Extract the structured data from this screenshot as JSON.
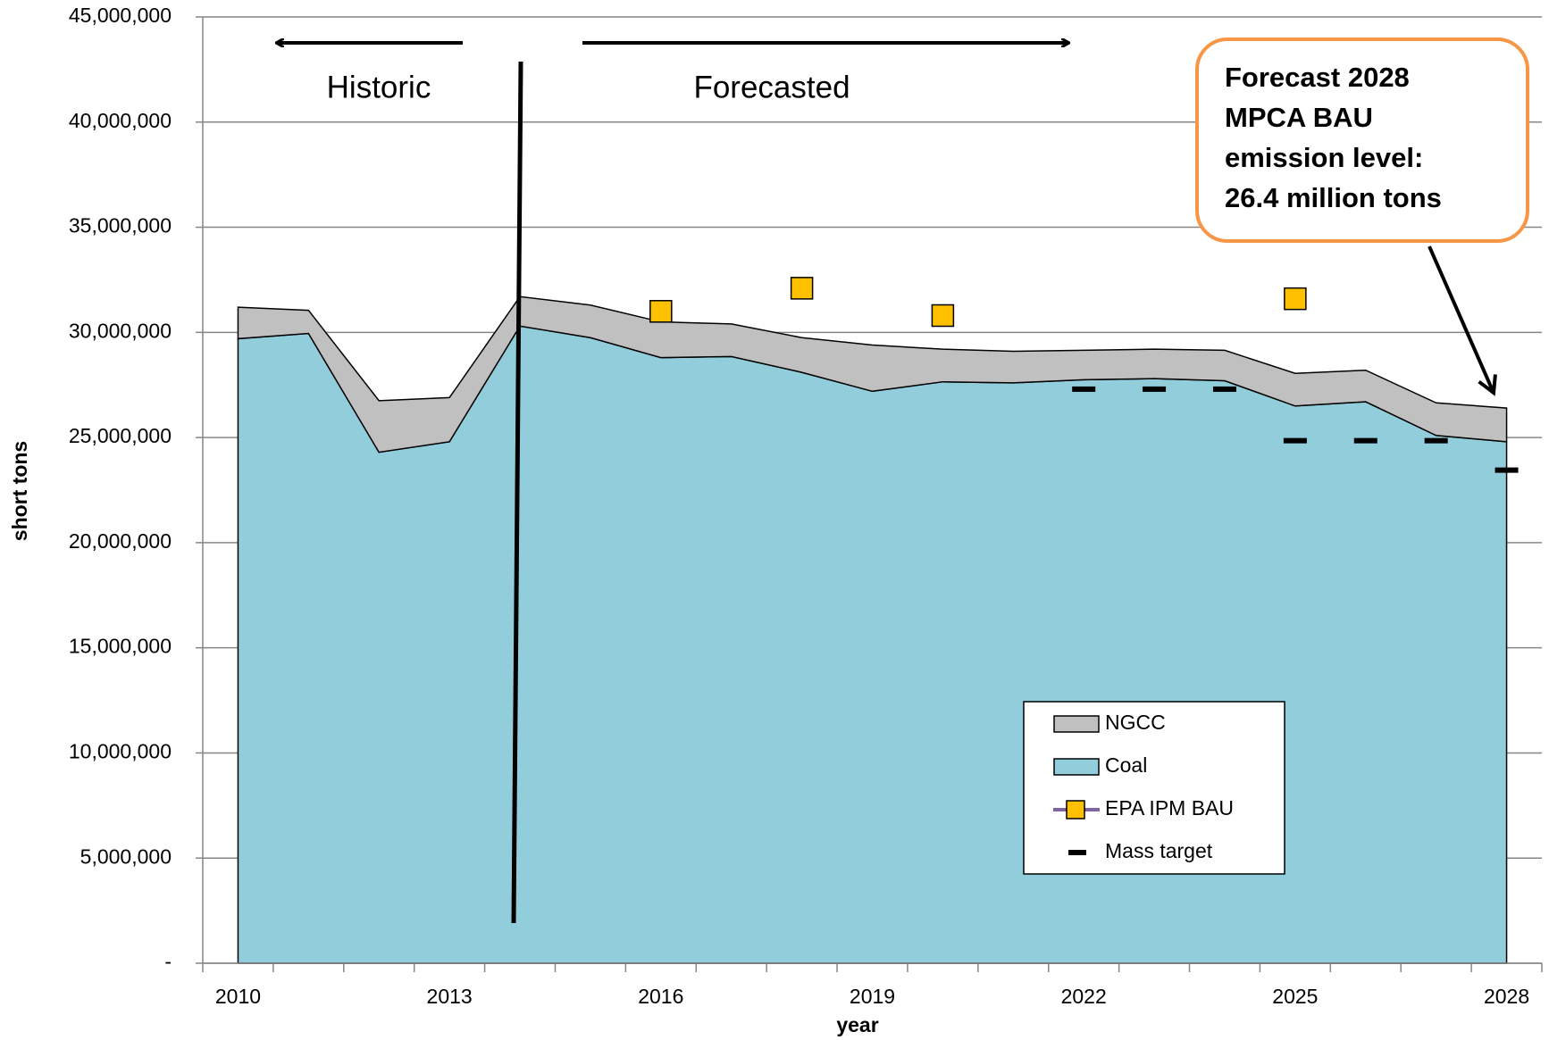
{
  "chart_data": {
    "type": "area",
    "stacked": true,
    "x_label": "year",
    "y_label": "short tons",
    "categories": [
      "2010",
      null,
      null,
      "2013",
      null,
      null,
      "2016",
      null,
      null,
      "2019",
      null,
      null,
      "2022",
      null,
      null,
      "2025",
      null,
      null,
      "2028"
    ],
    "series": [
      {
        "name": "NGCC",
        "type": "area",
        "color": "#c0c0c0",
        "values": [
          1500000,
          1100000,
          2450000,
          2100000,
          1400000,
          1550000,
          1700000,
          1550000,
          1650000,
          2200000,
          1550000,
          1500000,
          1400000,
          1400000,
          1450000,
          1550000,
          1500000,
          1550000,
          1600000
        ]
      },
      {
        "name": "Coal",
        "type": "area",
        "color": "#92cddc",
        "values": [
          29700000,
          29950000,
          24300000,
          24800000,
          30300000,
          29750000,
          28800000,
          28850000,
          28100000,
          27200000,
          27650000,
          27600000,
          27750000,
          27800000,
          27700000,
          26500000,
          26700000,
          25100000,
          24800000
        ]
      },
      {
        "name": "EPA IPM BAU",
        "type": "square",
        "color": "#ffc000",
        "line_color": "#8064a2",
        "values": [
          null,
          null,
          null,
          null,
          null,
          null,
          31000000,
          null,
          32100000,
          null,
          30800000,
          null,
          null,
          null,
          null,
          31600000,
          null,
          null,
          null
        ]
      },
      {
        "name": "Mass target",
        "type": "dash",
        "color": "#000000",
        "values": [
          null,
          null,
          null,
          null,
          null,
          null,
          null,
          null,
          null,
          null,
          null,
          null,
          27300000,
          27300000,
          27300000,
          24850000,
          24850000,
          24850000,
          23450000
        ]
      }
    ],
    "ylim": [
      0,
      45000000
    ],
    "yticks": [
      {
        "value": 0,
        "label": "-"
      },
      {
        "value": 5000000,
        "label": "5,000,000"
      },
      {
        "value": 10000000,
        "label": "10,000,000"
      },
      {
        "value": 15000000,
        "label": "15,000,000"
      },
      {
        "value": 20000000,
        "label": "20,000,000"
      },
      {
        "value": 25000000,
        "label": "25,000,000"
      },
      {
        "value": 30000000,
        "label": "30,000,000"
      },
      {
        "value": 35000000,
        "label": "35,000,000"
      },
      {
        "value": 40000000,
        "label": "40,000,000"
      },
      {
        "value": 45000000,
        "label": "45,000,000"
      }
    ],
    "grid": true,
    "annotations": {
      "historic": "Historic",
      "forecasted": "Forecasted",
      "callout": [
        "Forecast 2028",
        "MPCA BAU",
        "emission level:",
        "26.4 million tons"
      ]
    }
  }
}
